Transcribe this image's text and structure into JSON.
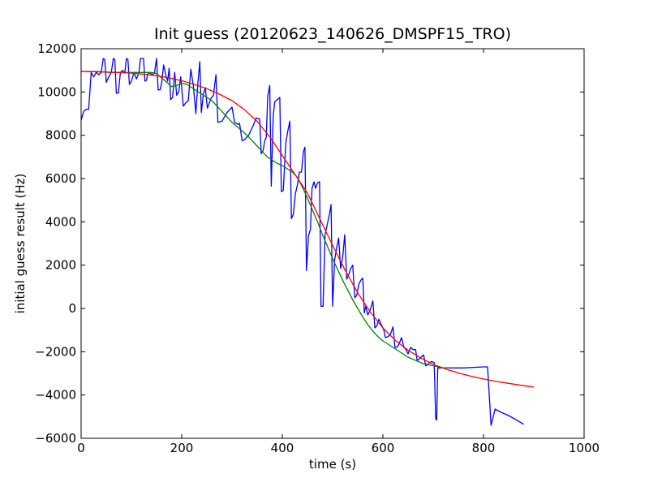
{
  "chart_data": {
    "type": "line",
    "title": "Init guess (20120623_140626_DMSPF15_TRO)",
    "xlabel": "time (s)",
    "ylabel": "initial guess result (Hz)",
    "xlim": [
      0,
      1000
    ],
    "ylim": [
      -6000,
      12000
    ],
    "x_ticks": [
      0,
      200,
      400,
      600,
      800,
      1000
    ],
    "y_ticks": [
      -6000,
      -4000,
      -2000,
      0,
      2000,
      4000,
      6000,
      8000,
      10000,
      12000
    ],
    "grid": false,
    "legend": "none",
    "series": [
      {
        "color": "#0000ff",
        "points": [
          [
            0,
            8700
          ],
          [
            5,
            9100
          ],
          [
            10,
            9200
          ],
          [
            15,
            9200
          ],
          [
            20,
            10900
          ],
          [
            25,
            10700
          ],
          [
            30,
            10900
          ],
          [
            35,
            10800
          ],
          [
            40,
            10900
          ],
          [
            44,
            11550
          ],
          [
            47,
            11500
          ],
          [
            50,
            10450
          ],
          [
            55,
            10700
          ],
          [
            60,
            10900
          ],
          [
            64,
            11550
          ],
          [
            67,
            11500
          ],
          [
            70,
            9950
          ],
          [
            74,
            9950
          ],
          [
            78,
            10900
          ],
          [
            82,
            11000
          ],
          [
            87,
            10900
          ],
          [
            90,
            11550
          ],
          [
            93,
            11500
          ],
          [
            96,
            10350
          ],
          [
            100,
            10500
          ],
          [
            105,
            10900
          ],
          [
            110,
            10600
          ],
          [
            115,
            10900
          ],
          [
            118,
            11550
          ],
          [
            121,
            11550
          ],
          [
            124,
            11550
          ],
          [
            127,
            10500
          ],
          [
            130,
            10550
          ],
          [
            133,
            10900
          ],
          [
            138,
            10850
          ],
          [
            142,
            10800
          ],
          [
            146,
            10900
          ],
          [
            150,
            11550
          ],
          [
            153,
            10100
          ],
          [
            157,
            10100
          ],
          [
            160,
            10400
          ],
          [
            164,
            11250
          ],
          [
            168,
            10800
          ],
          [
            172,
            10500
          ],
          [
            175,
            11100
          ],
          [
            178,
            9650
          ],
          [
            182,
            9750
          ],
          [
            186,
            10900
          ],
          [
            190,
            9850
          ],
          [
            194,
            10000
          ],
          [
            198,
            10700
          ],
          [
            203,
            9350
          ],
          [
            208,
            9500
          ],
          [
            213,
            9600
          ],
          [
            218,
            11050
          ],
          [
            223,
            10300
          ],
          [
            228,
            9000
          ],
          [
            232,
            10350
          ],
          [
            236,
            11400
          ],
          [
            239,
            9050
          ],
          [
            243,
            9900
          ],
          [
            247,
            10200
          ],
          [
            251,
            9250
          ],
          [
            255,
            9500
          ],
          [
            258,
            9700
          ],
          [
            263,
            9850
          ],
          [
            268,
            10800
          ],
          [
            272,
            8600
          ],
          [
            280,
            8650
          ],
          [
            290,
            9050
          ],
          [
            300,
            9300
          ],
          [
            305,
            8600
          ],
          [
            312,
            8500
          ],
          [
            315,
            8550
          ],
          [
            320,
            7750
          ],
          [
            325,
            7800
          ],
          [
            333,
            8000
          ],
          [
            338,
            8250
          ],
          [
            343,
            8500
          ],
          [
            348,
            8800
          ],
          [
            355,
            8750
          ],
          [
            358,
            7150
          ],
          [
            362,
            7300
          ],
          [
            365,
            7750
          ],
          [
            368,
            7900
          ],
          [
            371,
            9800
          ],
          [
            375,
            10300
          ],
          [
            378,
            5650
          ],
          [
            382,
            8900
          ],
          [
            385,
            9550
          ],
          [
            390,
            9650
          ],
          [
            395,
            9750
          ],
          [
            398,
            5400
          ],
          [
            402,
            5450
          ],
          [
            407,
            7650
          ],
          [
            411,
            8200
          ],
          [
            415,
            8650
          ],
          [
            418,
            4150
          ],
          [
            422,
            4350
          ],
          [
            426,
            5300
          ],
          [
            430,
            5700
          ],
          [
            434,
            6300
          ],
          [
            438,
            6300
          ],
          [
            442,
            7250
          ],
          [
            445,
            7450
          ],
          [
            448,
            1750
          ],
          [
            452,
            3350
          ],
          [
            456,
            3650
          ],
          [
            459,
            5550
          ],
          [
            463,
            5850
          ],
          [
            466,
            5550
          ],
          [
            470,
            5800
          ],
          [
            474,
            5850
          ],
          [
            477,
            100
          ],
          [
            481,
            100
          ],
          [
            485,
            3400
          ],
          [
            490,
            3950
          ],
          [
            494,
            4400
          ],
          [
            497,
            4800
          ],
          [
            500,
            100
          ],
          [
            504,
            2250
          ],
          [
            508,
            2800
          ],
          [
            512,
            3250
          ],
          [
            516,
            1850
          ],
          [
            520,
            2350
          ],
          [
            524,
            3400
          ],
          [
            528,
            1350
          ],
          [
            532,
            1550
          ],
          [
            536,
            1850
          ],
          [
            540,
            2000
          ],
          [
            544,
            500
          ],
          [
            548,
            600
          ],
          [
            552,
            1100
          ],
          [
            556,
            1300
          ],
          [
            560,
            1400
          ],
          [
            563,
            -200
          ],
          [
            566,
            100
          ],
          [
            570,
            -300
          ],
          [
            575,
            -50
          ],
          [
            580,
            350
          ],
          [
            584,
            -900
          ],
          [
            588,
            -800
          ],
          [
            592,
            -500
          ],
          [
            597,
            -750
          ],
          [
            602,
            -1000
          ],
          [
            605,
            -1350
          ],
          [
            610,
            -1300
          ],
          [
            615,
            -1200
          ],
          [
            620,
            -850
          ],
          [
            624,
            -1800
          ],
          [
            628,
            -1800
          ],
          [
            632,
            -1650
          ],
          [
            637,
            -1350
          ],
          [
            642,
            -1800
          ],
          [
            646,
            -1900
          ],
          [
            650,
            -2100
          ],
          [
            655,
            -1800
          ],
          [
            660,
            -1900
          ],
          [
            665,
            -1900
          ],
          [
            668,
            -2400
          ],
          [
            672,
            -2350
          ],
          [
            676,
            -2250
          ],
          [
            681,
            -2150
          ],
          [
            685,
            -2650
          ],
          [
            689,
            -2600
          ],
          [
            693,
            -2500
          ],
          [
            697,
            -2450
          ],
          [
            702,
            -2500
          ],
          [
            705,
            -5100
          ],
          [
            707,
            -5150
          ],
          [
            709,
            -2750
          ],
          [
            720,
            -2750
          ],
          [
            760,
            -2750
          ],
          [
            800,
            -2700
          ],
          [
            808,
            -2700
          ],
          [
            815,
            -5400
          ],
          [
            823,
            -4650
          ],
          [
            835,
            -4800
          ],
          [
            850,
            -4950
          ],
          [
            865,
            -5150
          ],
          [
            880,
            -5350
          ]
        ]
      },
      {
        "color": "#008000",
        "points": [
          [
            0,
            10950
          ],
          [
            30,
            10950
          ],
          [
            60,
            10900
          ],
          [
            90,
            10900
          ],
          [
            120,
            10900
          ],
          [
            140,
            10900
          ],
          [
            150,
            10850
          ],
          [
            160,
            10650
          ],
          [
            170,
            10450
          ],
          [
            180,
            10250
          ],
          [
            190,
            10300
          ],
          [
            200,
            10400
          ],
          [
            210,
            10350
          ],
          [
            220,
            10200
          ],
          [
            230,
            10050
          ],
          [
            240,
            9900
          ],
          [
            250,
            9750
          ],
          [
            260,
            9600
          ],
          [
            270,
            9350
          ],
          [
            280,
            9100
          ],
          [
            290,
            8850
          ],
          [
            300,
            8600
          ],
          [
            310,
            8400
          ],
          [
            320,
            8200
          ],
          [
            330,
            8000
          ],
          [
            340,
            7750
          ],
          [
            350,
            7500
          ],
          [
            360,
            7250
          ],
          [
            370,
            7000
          ],
          [
            380,
            6850
          ],
          [
            390,
            6700
          ],
          [
            400,
            6600
          ],
          [
            410,
            6450
          ],
          [
            420,
            6300
          ],
          [
            430,
            6050
          ],
          [
            440,
            5600
          ],
          [
            450,
            5100
          ],
          [
            460,
            4550
          ],
          [
            470,
            4000
          ],
          [
            480,
            3400
          ],
          [
            490,
            2850
          ],
          [
            500,
            2300
          ],
          [
            510,
            1800
          ],
          [
            520,
            1300
          ],
          [
            530,
            850
          ],
          [
            540,
            400
          ],
          [
            550,
            0
          ],
          [
            560,
            -400
          ],
          [
            570,
            -750
          ],
          [
            580,
            -1050
          ],
          [
            590,
            -1300
          ],
          [
            600,
            -1500
          ],
          [
            610,
            -1650
          ],
          [
            620,
            -1800
          ],
          [
            630,
            -1950
          ],
          [
            640,
            -2100
          ],
          [
            650,
            -2250
          ],
          [
            660,
            -2350
          ],
          [
            670,
            -2450
          ],
          [
            680,
            -2550
          ],
          [
            690,
            -2600
          ],
          [
            700,
            -2650
          ],
          [
            710,
            -2700
          ],
          [
            720,
            -2750
          ],
          [
            730,
            -2750
          ]
        ]
      },
      {
        "color": "#ff0000",
        "points": [
          [
            0,
            10950
          ],
          [
            25,
            10940
          ],
          [
            50,
            10920
          ],
          [
            75,
            10900
          ],
          [
            100,
            10870
          ],
          [
            125,
            10820
          ],
          [
            150,
            10750
          ],
          [
            175,
            10650
          ],
          [
            200,
            10520
          ],
          [
            225,
            10350
          ],
          [
            250,
            10150
          ],
          [
            275,
            9900
          ],
          [
            300,
            9600
          ],
          [
            325,
            9180
          ],
          [
            350,
            8640
          ],
          [
            375,
            7930
          ],
          [
            400,
            7070
          ],
          [
            425,
            6200
          ],
          [
            450,
            5330
          ],
          [
            475,
            4120
          ],
          [
            500,
            2920
          ],
          [
            525,
            1760
          ],
          [
            550,
            720
          ],
          [
            575,
            -170
          ],
          [
            600,
            -900
          ],
          [
            625,
            -1480
          ],
          [
            650,
            -1930
          ],
          [
            675,
            -2290
          ],
          [
            700,
            -2580
          ],
          [
            725,
            -2800
          ],
          [
            750,
            -2980
          ],
          [
            775,
            -3130
          ],
          [
            800,
            -3260
          ],
          [
            825,
            -3370
          ],
          [
            850,
            -3460
          ],
          [
            875,
            -3550
          ],
          [
            900,
            -3630
          ]
        ]
      }
    ]
  }
}
